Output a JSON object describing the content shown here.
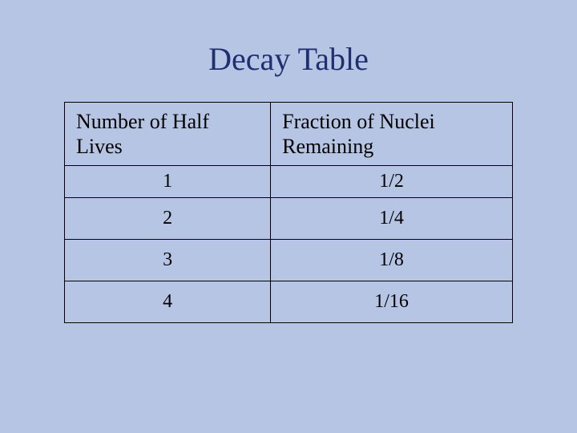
{
  "title": "Decay Table",
  "table": {
    "columns": [
      "Number of Half Lives",
      "Fraction of Nuclei Remaining"
    ],
    "rows": [
      [
        "1",
        "1/2"
      ],
      [
        "2",
        "1/4"
      ],
      [
        "3",
        "1/8"
      ],
      [
        "4",
        "1/16"
      ]
    ],
    "col_widths_pct": [
      46,
      54
    ],
    "border_color": "#000000",
    "background_color": "#b6c5e4",
    "text_color": "#000000",
    "title_color": "#1f2f6f",
    "title_fontsize": 40,
    "header_fontsize": 26,
    "cell_fontsize": 24,
    "font_family": "Times New Roman"
  }
}
